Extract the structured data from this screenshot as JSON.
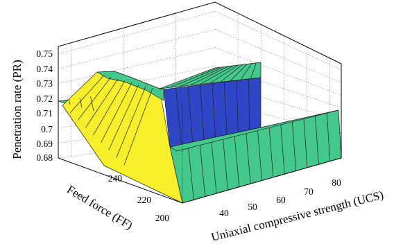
{
  "chart_data": {
    "type": "surface",
    "xlabel": "Uniaxial compressive strength (UCS)",
    "ylabel": "Feed force (FF)",
    "zlabel": "Penetration rate (PR)",
    "x_ticks": [
      "40",
      "50",
      "60",
      "70",
      "80"
    ],
    "y_ticks": [
      "200",
      "220",
      "240"
    ],
    "z_ticks": [
      "0.68",
      "0.69",
      "0.7",
      "0.71",
      "0.72",
      "0.73",
      "0.74",
      "0.75"
    ],
    "xlim": [
      30,
      85
    ],
    "ylim": [
      195,
      255
    ],
    "zlim": [
      0.68,
      0.755
    ],
    "grid": true,
    "surface": [
      {
        "region": "low feed force, UCS 30-85",
        "PR": 0.695
      },
      {
        "region": "high feed force, UCS 30-40",
        "PR": 0.72
      },
      {
        "region": "yellow ridge near UCS 40-45",
        "PR": 0.74
      },
      {
        "region": "high feed force plateau, UCS 45-70",
        "PR": 0.73
      },
      {
        "region": "blue step face at UCS 70",
        "PR_range": [
          0.695,
          0.73
        ]
      }
    ],
    "colors": {
      "green": "#44c88c",
      "yellow": "#f6f02c",
      "blue": "#2e46c4",
      "edge": "#1e1e1e"
    }
  }
}
